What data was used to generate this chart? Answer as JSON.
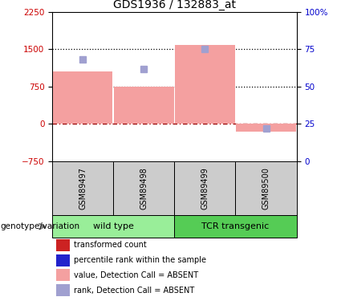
{
  "title": "GDS1936 / 132883_at",
  "samples": [
    "GSM89497",
    "GSM89498",
    "GSM89499",
    "GSM89500"
  ],
  "bar_values": [
    1050,
    750,
    1580,
    -150
  ],
  "rank_values": [
    68,
    62,
    75,
    22
  ],
  "ylim_left": [
    -750,
    2250
  ],
  "ylim_right": [
    0,
    100
  ],
  "yticks_left": [
    -750,
    0,
    750,
    1500,
    2250
  ],
  "yticks_right": [
    0,
    25,
    50,
    75,
    100
  ],
  "hlines": [
    750,
    1500
  ],
  "bar_color_absent": "#f4a0a0",
  "rank_color_absent": "#a0a0d0",
  "zero_line_color": "#990000",
  "groups": [
    {
      "label": "wild type",
      "samples": [
        0,
        1
      ],
      "color": "#99ee99"
    },
    {
      "label": "TCR transgenic",
      "samples": [
        2,
        3
      ],
      "color": "#55cc55"
    }
  ],
  "group_label": "genotype/variation",
  "legend_items": [
    {
      "color": "#cc2222",
      "label": "transformed count"
    },
    {
      "color": "#2222cc",
      "label": "percentile rank within the sample"
    },
    {
      "color": "#f4a0a0",
      "label": "value, Detection Call = ABSENT"
    },
    {
      "color": "#a0a0d0",
      "label": "rank, Detection Call = ABSENT"
    }
  ],
  "bar_width": 0.28,
  "rank_marker_size": 6,
  "left_label_color": "#cc0000",
  "right_label_color": "#0000cc",
  "title_fontsize": 10,
  "tick_fontsize": 7.5,
  "sample_label_fontsize": 7,
  "legend_fontsize": 7,
  "group_fontsize": 8
}
